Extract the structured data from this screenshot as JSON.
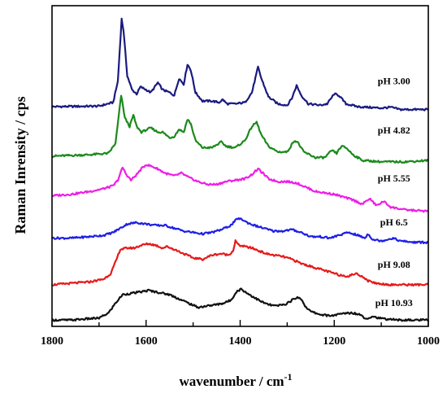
{
  "chart_data": {
    "type": "line",
    "xlabel": "wavenumber / cm",
    "xlabel_sup": "-1",
    "ylabel": "Raman Inrensity / cps",
    "xlim": [
      1800,
      1000
    ],
    "x_reversed": true,
    "xticks": [
      "1800",
      "1600",
      "1400",
      "1200",
      "1000"
    ],
    "yticks_shown": false,
    "grid": false,
    "ylim": [
      0,
      11
    ],
    "series": [
      {
        "name": "pH 3.00",
        "color": "#1a1a80",
        "points": [
          [
            1800,
            7.6
          ],
          [
            1700,
            7.62
          ],
          [
            1670,
            7.75
          ],
          [
            1660,
            8.5
          ],
          [
            1652,
            10.7
          ],
          [
            1648,
            10.3
          ],
          [
            1640,
            8.7
          ],
          [
            1630,
            8.2
          ],
          [
            1620,
            8.05
          ],
          [
            1612,
            8.3
          ],
          [
            1600,
            8.2
          ],
          [
            1590,
            8.1
          ],
          [
            1575,
            8.45
          ],
          [
            1565,
            8.2
          ],
          [
            1550,
            8.1
          ],
          [
            1540,
            8.0
          ],
          [
            1530,
            8.6
          ],
          [
            1520,
            8.4
          ],
          [
            1512,
            9.1
          ],
          [
            1505,
            8.9
          ],
          [
            1495,
            8.1
          ],
          [
            1480,
            7.8
          ],
          [
            1460,
            7.8
          ],
          [
            1445,
            7.75
          ],
          [
            1437,
            7.85
          ],
          [
            1428,
            7.7
          ],
          [
            1410,
            7.7
          ],
          [
            1390,
            7.75
          ],
          [
            1375,
            8.1
          ],
          [
            1362,
            9.0
          ],
          [
            1355,
            8.6
          ],
          [
            1340,
            7.95
          ],
          [
            1320,
            7.7
          ],
          [
            1300,
            7.65
          ],
          [
            1290,
            7.9
          ],
          [
            1280,
            8.35
          ],
          [
            1270,
            8.0
          ],
          [
            1255,
            7.7
          ],
          [
            1230,
            7.65
          ],
          [
            1215,
            7.7
          ],
          [
            1200,
            8.05
          ],
          [
            1190,
            8.0
          ],
          [
            1175,
            7.7
          ],
          [
            1150,
            7.6
          ],
          [
            1100,
            7.55
          ],
          [
            1080,
            7.58
          ],
          [
            1060,
            7.5
          ],
          [
            1000,
            7.5
          ]
        ]
      },
      {
        "name": "pH 4.82",
        "color": "#1b8a1b",
        "points": [
          [
            1800,
            5.85
          ],
          [
            1720,
            5.9
          ],
          [
            1680,
            5.95
          ],
          [
            1665,
            6.3
          ],
          [
            1653,
            8.0
          ],
          [
            1645,
            7.2
          ],
          [
            1635,
            6.9
          ],
          [
            1627,
            7.3
          ],
          [
            1620,
            6.9
          ],
          [
            1610,
            6.7
          ],
          [
            1590,
            6.85
          ],
          [
            1575,
            6.7
          ],
          [
            1565,
            6.7
          ],
          [
            1550,
            6.5
          ],
          [
            1540,
            6.55
          ],
          [
            1530,
            6.8
          ],
          [
            1520,
            6.7
          ],
          [
            1512,
            7.15
          ],
          [
            1505,
            7.0
          ],
          [
            1495,
            6.4
          ],
          [
            1480,
            6.15
          ],
          [
            1460,
            6.15
          ],
          [
            1440,
            6.35
          ],
          [
            1430,
            6.2
          ],
          [
            1410,
            6.15
          ],
          [
            1390,
            6.4
          ],
          [
            1375,
            6.9
          ],
          [
            1365,
            7.05
          ],
          [
            1355,
            6.6
          ],
          [
            1340,
            6.2
          ],
          [
            1320,
            6.0
          ],
          [
            1300,
            6.0
          ],
          [
            1285,
            6.4
          ],
          [
            1278,
            6.35
          ],
          [
            1265,
            6.0
          ],
          [
            1240,
            5.8
          ],
          [
            1220,
            5.8
          ],
          [
            1205,
            6.05
          ],
          [
            1195,
            5.95
          ],
          [
            1185,
            6.2
          ],
          [
            1175,
            6.15
          ],
          [
            1160,
            5.9
          ],
          [
            1140,
            5.7
          ],
          [
            1100,
            5.65
          ],
          [
            1050,
            5.65
          ],
          [
            1000,
            5.7
          ]
        ]
      },
      {
        "name": "pH 5.55",
        "color": "#ee1ee6",
        "points": [
          [
            1800,
            4.45
          ],
          [
            1760,
            4.5
          ],
          [
            1720,
            4.6
          ],
          [
            1690,
            4.7
          ],
          [
            1670,
            4.8
          ],
          [
            1660,
            5.0
          ],
          [
            1650,
            5.45
          ],
          [
            1642,
            5.2
          ],
          [
            1632,
            5.0
          ],
          [
            1620,
            5.2
          ],
          [
            1610,
            5.4
          ],
          [
            1600,
            5.55
          ],
          [
            1590,
            5.5
          ],
          [
            1575,
            5.4
          ],
          [
            1560,
            5.25
          ],
          [
            1540,
            5.15
          ],
          [
            1525,
            5.25
          ],
          [
            1510,
            5.1
          ],
          [
            1490,
            4.95
          ],
          [
            1470,
            4.85
          ],
          [
            1450,
            4.85
          ],
          [
            1430,
            4.95
          ],
          [
            1410,
            5.0
          ],
          [
            1390,
            5.05
          ],
          [
            1375,
            5.2
          ],
          [
            1362,
            5.4
          ],
          [
            1352,
            5.25
          ],
          [
            1340,
            5.05
          ],
          [
            1320,
            4.95
          ],
          [
            1300,
            4.95
          ],
          [
            1280,
            4.9
          ],
          [
            1260,
            4.75
          ],
          [
            1240,
            4.6
          ],
          [
            1220,
            4.55
          ],
          [
            1200,
            4.5
          ],
          [
            1180,
            4.4
          ],
          [
            1160,
            4.3
          ],
          [
            1140,
            4.15
          ],
          [
            1125,
            4.35
          ],
          [
            1110,
            4.1
          ],
          [
            1095,
            4.25
          ],
          [
            1080,
            4.05
          ],
          [
            1050,
            3.95
          ],
          [
            1000,
            3.9
          ]
        ]
      },
      {
        "name": "pH 6.5",
        "color": "#1f1fe6",
        "points": [
          [
            1800,
            2.95
          ],
          [
            1760,
            2.95
          ],
          [
            1720,
            3.0
          ],
          [
            1690,
            3.05
          ],
          [
            1670,
            3.15
          ],
          [
            1655,
            3.3
          ],
          [
            1640,
            3.45
          ],
          [
            1620,
            3.5
          ],
          [
            1600,
            3.45
          ],
          [
            1580,
            3.4
          ],
          [
            1560,
            3.4
          ],
          [
            1540,
            3.3
          ],
          [
            1520,
            3.2
          ],
          [
            1500,
            3.15
          ],
          [
            1480,
            3.1
          ],
          [
            1460,
            3.15
          ],
          [
            1440,
            3.25
          ],
          [
            1420,
            3.4
          ],
          [
            1405,
            3.65
          ],
          [
            1395,
            3.6
          ],
          [
            1385,
            3.5
          ],
          [
            1370,
            3.4
          ],
          [
            1350,
            3.3
          ],
          [
            1330,
            3.2
          ],
          [
            1310,
            3.2
          ],
          [
            1290,
            3.25
          ],
          [
            1270,
            3.15
          ],
          [
            1250,
            3.0
          ],
          [
            1230,
            3.0
          ],
          [
            1210,
            2.95
          ],
          [
            1190,
            3.05
          ],
          [
            1170,
            3.15
          ],
          [
            1150,
            3.05
          ],
          [
            1135,
            2.95
          ],
          [
            1128,
            3.1
          ],
          [
            1118,
            2.9
          ],
          [
            1100,
            2.85
          ],
          [
            1075,
            2.95
          ],
          [
            1060,
            2.85
          ],
          [
            1030,
            2.8
          ],
          [
            1000,
            2.8
          ]
        ]
      },
      {
        "name": "pH 9.08",
        "color": "#e61a1a",
        "points": [
          [
            1800,
            1.3
          ],
          [
            1760,
            1.35
          ],
          [
            1720,
            1.4
          ],
          [
            1690,
            1.5
          ],
          [
            1675,
            1.7
          ],
          [
            1665,
            2.1
          ],
          [
            1655,
            2.55
          ],
          [
            1640,
            2.6
          ],
          [
            1625,
            2.6
          ],
          [
            1610,
            2.7
          ],
          [
            1595,
            2.75
          ],
          [
            1580,
            2.7
          ],
          [
            1565,
            2.6
          ],
          [
            1555,
            2.65
          ],
          [
            1540,
            2.55
          ],
          [
            1520,
            2.4
          ],
          [
            1500,
            2.25
          ],
          [
            1480,
            2.2
          ],
          [
            1460,
            2.35
          ],
          [
            1440,
            2.4
          ],
          [
            1425,
            2.35
          ],
          [
            1415,
            2.5
          ],
          [
            1410,
            2.85
          ],
          [
            1403,
            2.7
          ],
          [
            1390,
            2.65
          ],
          [
            1375,
            2.6
          ],
          [
            1360,
            2.5
          ],
          [
            1345,
            2.4
          ],
          [
            1330,
            2.35
          ],
          [
            1310,
            2.3
          ],
          [
            1290,
            2.2
          ],
          [
            1270,
            2.05
          ],
          [
            1250,
            1.95
          ],
          [
            1230,
            1.85
          ],
          [
            1210,
            1.75
          ],
          [
            1190,
            1.65
          ],
          [
            1170,
            1.6
          ],
          [
            1155,
            1.7
          ],
          [
            1140,
            1.6
          ],
          [
            1130,
            1.45
          ],
          [
            1110,
            1.35
          ],
          [
            1080,
            1.3
          ],
          [
            1040,
            1.3
          ],
          [
            1000,
            1.3
          ]
        ]
      },
      {
        "name": "pH 10.93",
        "color": "#111111",
        "points": [
          [
            1800,
            0.05
          ],
          [
            1760,
            0.05
          ],
          [
            1720,
            0.1
          ],
          [
            1700,
            0.12
          ],
          [
            1680,
            0.3
          ],
          [
            1665,
            0.65
          ],
          [
            1650,
            0.95
          ],
          [
            1630,
            1.0
          ],
          [
            1610,
            1.05
          ],
          [
            1595,
            1.1
          ],
          [
            1580,
            1.05
          ],
          [
            1565,
            1.0
          ],
          [
            1550,
            0.95
          ],
          [
            1530,
            0.8
          ],
          [
            1510,
            0.65
          ],
          [
            1490,
            0.5
          ],
          [
            1470,
            0.55
          ],
          [
            1450,
            0.6
          ],
          [
            1435,
            0.65
          ],
          [
            1420,
            0.75
          ],
          [
            1408,
            1.05
          ],
          [
            1398,
            1.15
          ],
          [
            1385,
            1.0
          ],
          [
            1370,
            0.85
          ],
          [
            1355,
            0.7
          ],
          [
            1340,
            0.6
          ],
          [
            1325,
            0.55
          ],
          [
            1305,
            0.6
          ],
          [
            1290,
            0.75
          ],
          [
            1280,
            0.85
          ],
          [
            1270,
            0.8
          ],
          [
            1262,
            0.55
          ],
          [
            1250,
            0.35
          ],
          [
            1230,
            0.25
          ],
          [
            1210,
            0.2
          ],
          [
            1190,
            0.25
          ],
          [
            1175,
            0.3
          ],
          [
            1160,
            0.3
          ],
          [
            1145,
            0.25
          ],
          [
            1133,
            0.1
          ],
          [
            1118,
            0.18
          ],
          [
            1100,
            0.1
          ],
          [
            1060,
            0.05
          ],
          [
            1000,
            0.05
          ]
        ]
      }
    ],
    "series_label_x": [
      1073,
      1073,
      1073,
      1073,
      1073,
      1073
    ],
    "series_label_y": [
      8.4,
      6.65,
      4.95,
      3.4,
      1.9,
      0.55
    ]
  }
}
